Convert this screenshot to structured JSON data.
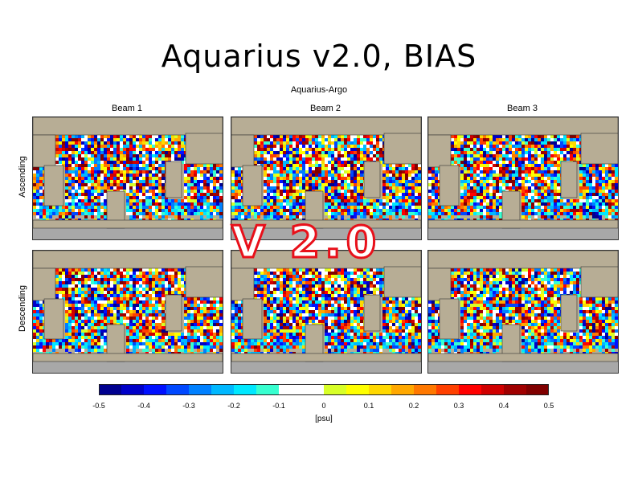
{
  "title": "Aquarius v2.0, BIAS",
  "subtitle": "Aquarius-Argo",
  "stamp": "V 2.0",
  "chart_data": {
    "type": "heatmap",
    "title": "Aquarius v2.0, BIAS",
    "subtitle": "Aquarius-Argo",
    "columns": [
      "Beam 1",
      "Beam 2",
      "Beam 3"
    ],
    "rows": [
      "Ascending",
      "Descending"
    ],
    "colorbar": {
      "label": "[psu]",
      "range": [
        -0.5,
        0.5
      ],
      "ticks": [
        "-0.5",
        "-0.4",
        "-0.3",
        "-0.2",
        "-0.1",
        "0",
        "0.1",
        "0.2",
        "0.3",
        "0.4",
        "0.5"
      ],
      "colors": [
        "#00008f",
        "#0000c8",
        "#0010ff",
        "#0048ff",
        "#0080ff",
        "#00b8ff",
        "#00e8ff",
        "#38ffd0",
        "#ffffff",
        "#ffffff",
        "#d8ff28",
        "#ffff00",
        "#ffd800",
        "#ffa800",
        "#ff7800",
        "#ff4000",
        "#ff0000",
        "#d00000",
        "#a00000",
        "#800000"
      ]
    },
    "land_color": "#b7ad95",
    "missing_color": "#a8a8a8"
  }
}
